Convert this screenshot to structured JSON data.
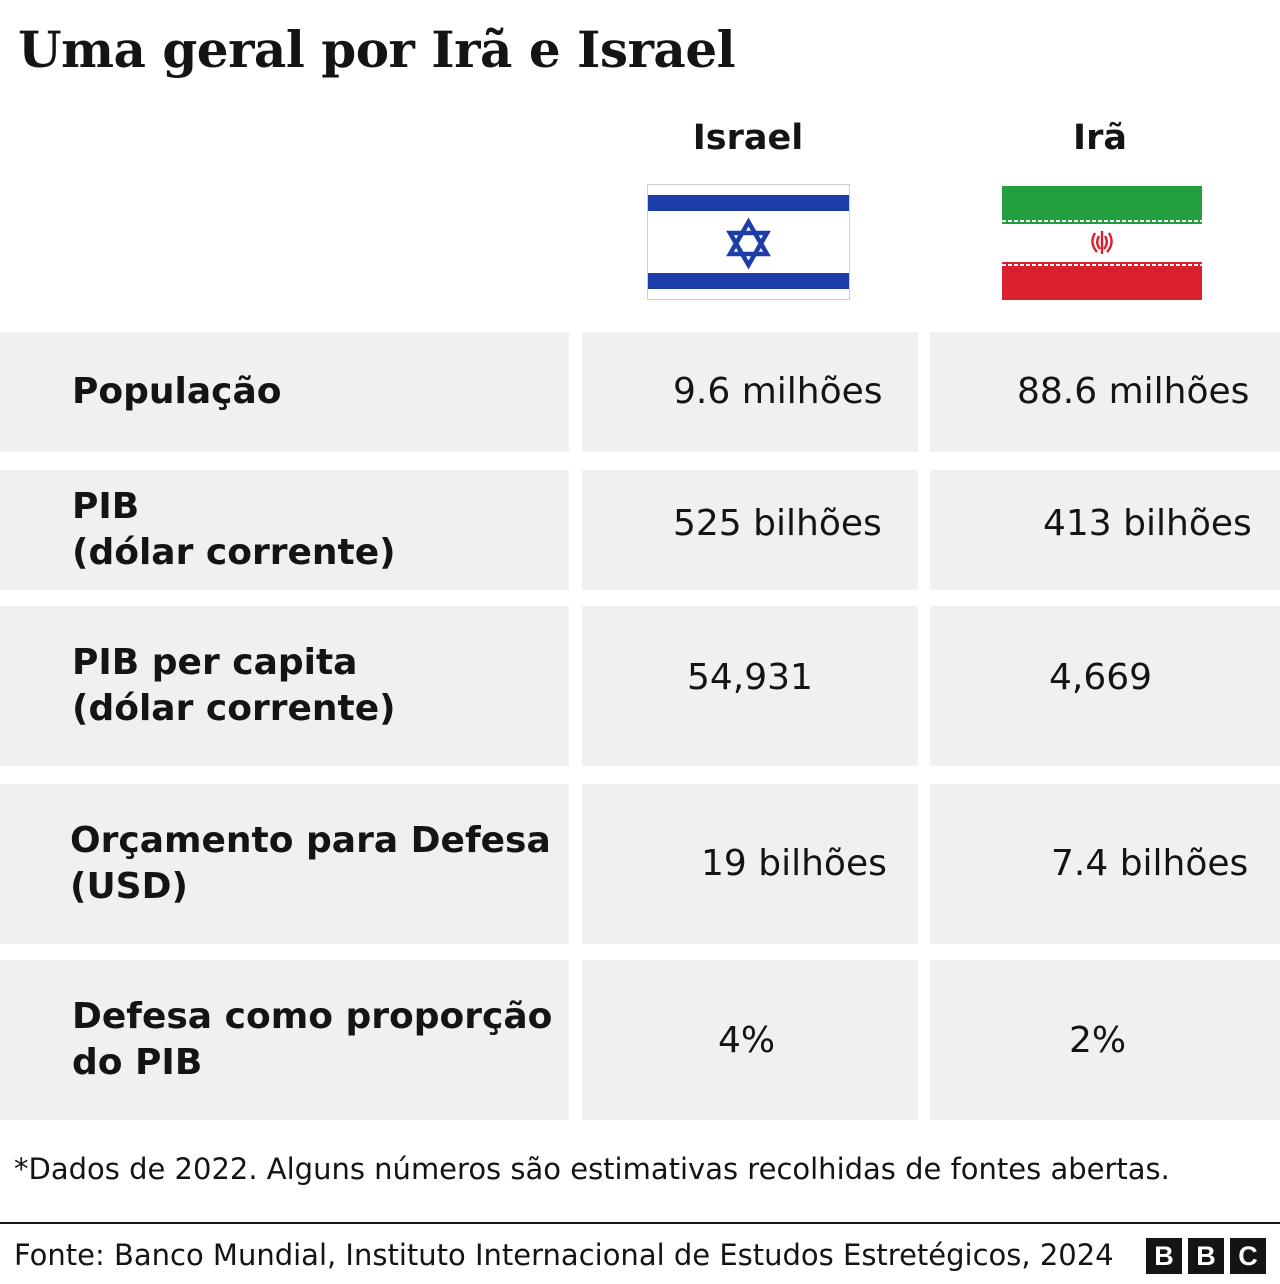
{
  "title": "Uma geral por Irã e Israel",
  "columns": [
    {
      "name": "Israel",
      "flag_icon": "israel-flag-icon"
    },
    {
      "name": "Irã",
      "flag_icon": "iran-flag-icon"
    }
  ],
  "rows": [
    {
      "label_line1": "População",
      "label_line2": "",
      "israel": "9.6 milhões",
      "iran": "88.6 milhões"
    },
    {
      "label_line1": "PIB",
      "label_line2": "(dólar corrente)",
      "israel": "525 bilhões",
      "iran": "413 bilhões"
    },
    {
      "label_line1": "PIB per capita",
      "label_line2": "(dólar corrente)",
      "israel": "54,931",
      "iran": "4,669"
    },
    {
      "label_line1": "Orçamento para Defesa",
      "label_line2": "(USD)",
      "israel": "19 bilhões",
      "iran": "7.4 bilhões"
    },
    {
      "label_line1": "Defesa como proporção",
      "label_line2": "do PIB",
      "israel": "4%",
      "iran": "2%"
    }
  ],
  "footnote": "*Dados de 2022. Alguns números são estimativas recolhidas de fontes abertas.",
  "source": "Fonte: Banco Mundial, Instituto Internacional de Estudos Estretégicos, 2024",
  "logo": {
    "letters": [
      "B",
      "B",
      "C"
    ]
  },
  "colors": {
    "israel_blue": "#1d3ea8",
    "iran_green": "#239f40",
    "iran_red": "#da1f2e",
    "cell_bg": "#f0f0f0"
  }
}
